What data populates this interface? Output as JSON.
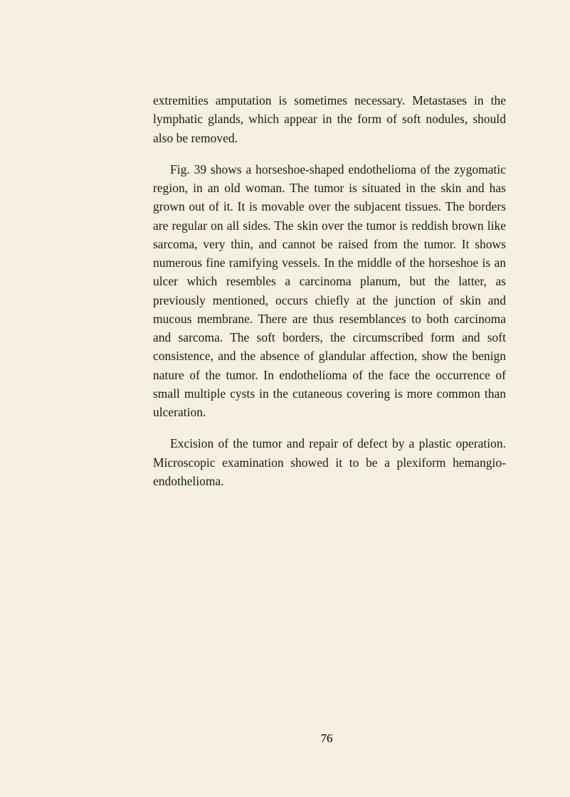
{
  "paragraphs": {
    "p1": "extremities amputation is sometimes necessary. Met­astases in the lymphatic glands, which appear in the form of soft nodules, should also be removed.",
    "p2": "Fig. 39 shows a horseshoe-shaped endothelioma of the zygomatic region, in an old woman. The tumor is situated in the skin and has grown out of it. It is movable over the subjacent tissues. The borders are regular on all sides. The skin over the tumor is reddish brown like sarcoma, very thin, and cannot be raised from the tumor. It shows numerous fine ramifying vessels. In the middle of the horseshoe is an ulcer which resembles a carcinoma planum, but the latter, as previously mentioned, occurs chiefly at the junction of skin and mucous membrane. There are thus resemblances to both carcinoma and sarcoma. The soft borders, the circumscribed form and soft consistence, and the absence of glandu­lar affection, show the benign nature of the tumor. In endothelioma of the face the occurrence of small multiple cysts in the cutaneous covering is more com­mon than ulceration.",
    "p3": "Excision of the tumor and repair of defect by a plastic operation. Microscopic examination showed it to be a plexiform hemangio-endothelioma."
  },
  "page_number": "76",
  "colors": {
    "background": "#f5f0e1",
    "text": "#1a1a1a"
  },
  "typography": {
    "body_fontsize": 17.5,
    "line_height": 1.5,
    "font_family": "Georgia, Times New Roman, serif"
  }
}
